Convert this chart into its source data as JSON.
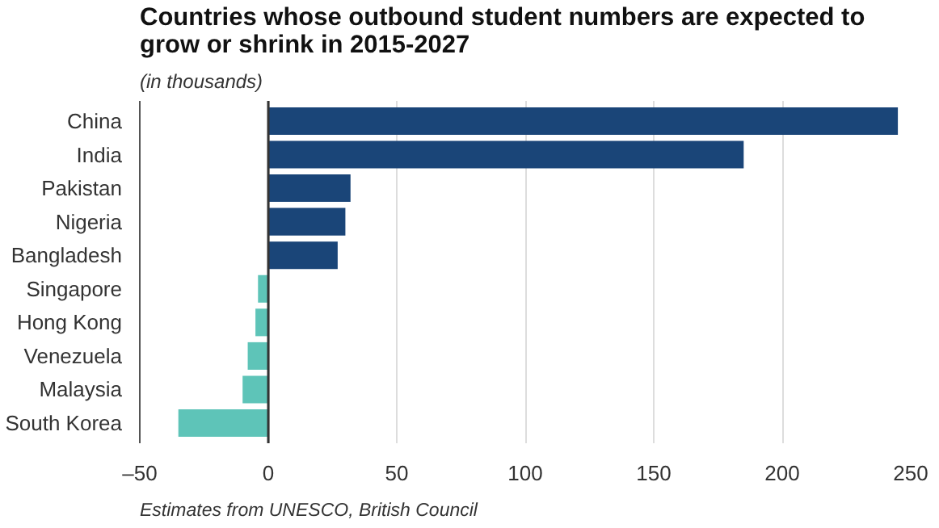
{
  "chart_data": {
    "type": "bar",
    "orientation": "horizontal",
    "title": "Countries whose outbound student numbers are expected to grow or shrink in 2015-2027",
    "subtitle": "(in thousands)",
    "categories": [
      "China",
      "India",
      "Pakistan",
      "Nigeria",
      "Bangladesh",
      "Singapore",
      "Hong Kong",
      "Venezuela",
      "Malaysia",
      "South Korea"
    ],
    "values": [
      245,
      185,
      32,
      30,
      27,
      -4,
      -5,
      -8,
      -10,
      -35
    ],
    "colors": [
      "#1a4578",
      "#1a4578",
      "#1a4578",
      "#1a4578",
      "#1a4578",
      "#5ec4b8",
      "#5ec4b8",
      "#5ec4b8",
      "#5ec4b8",
      "#5ec4b8"
    ],
    "xlim": [
      -50,
      250
    ],
    "xticks": [
      {
        "value": -50,
        "label": "–50"
      },
      0,
      50,
      100,
      150,
      200,
      250
    ],
    "grid": "x",
    "ref_lines": [
      {
        "axis": "x",
        "value": 0,
        "color": "#333333"
      }
    ],
    "annotations": [
      "Estimates from UNESCO, British Council"
    ]
  }
}
